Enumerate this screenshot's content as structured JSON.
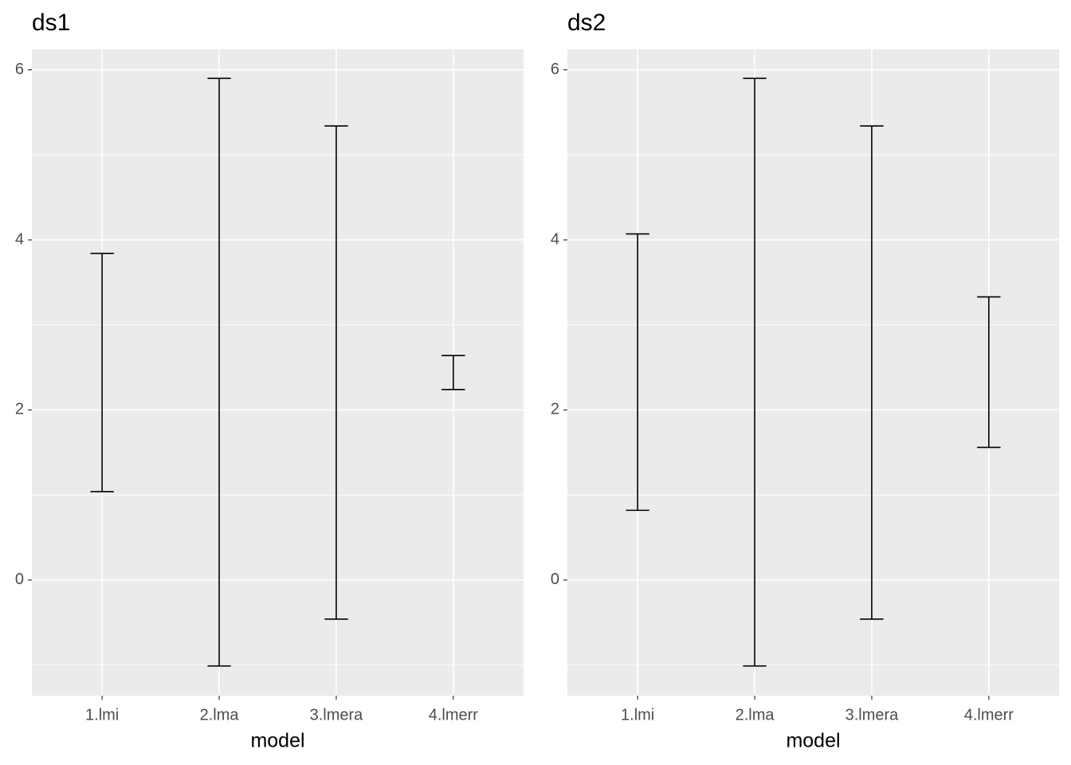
{
  "chart_data": [
    {
      "type": "errorbar",
      "title": "ds1",
      "x_label": "model",
      "categories": [
        "1.lmi",
        "2.lma",
        "3.lmera",
        "4.lmerr"
      ],
      "lower": [
        1.04,
        -1.01,
        -0.46,
        2.24
      ],
      "upper": [
        3.84,
        5.9,
        5.34,
        2.64
      ],
      "color": "#000000",
      "ylim": [
        -1.36,
        6.24
      ],
      "yticks": [
        0,
        2,
        4,
        6
      ],
      "grid": true,
      "minor_grid": true
    },
    {
      "type": "errorbar",
      "title": "ds2",
      "x_label": "model",
      "categories": [
        "1.lmi",
        "2.lma",
        "3.lmera",
        "4.lmerr"
      ],
      "lower": [
        0.82,
        -1.01,
        -0.46,
        1.56
      ],
      "upper": [
        4.07,
        5.9,
        5.34,
        3.33
      ],
      "color": "#000000",
      "ylim": [
        -1.36,
        6.24
      ],
      "yticks": [
        0,
        2,
        4,
        6
      ],
      "grid": true,
      "minor_grid": true
    }
  ]
}
